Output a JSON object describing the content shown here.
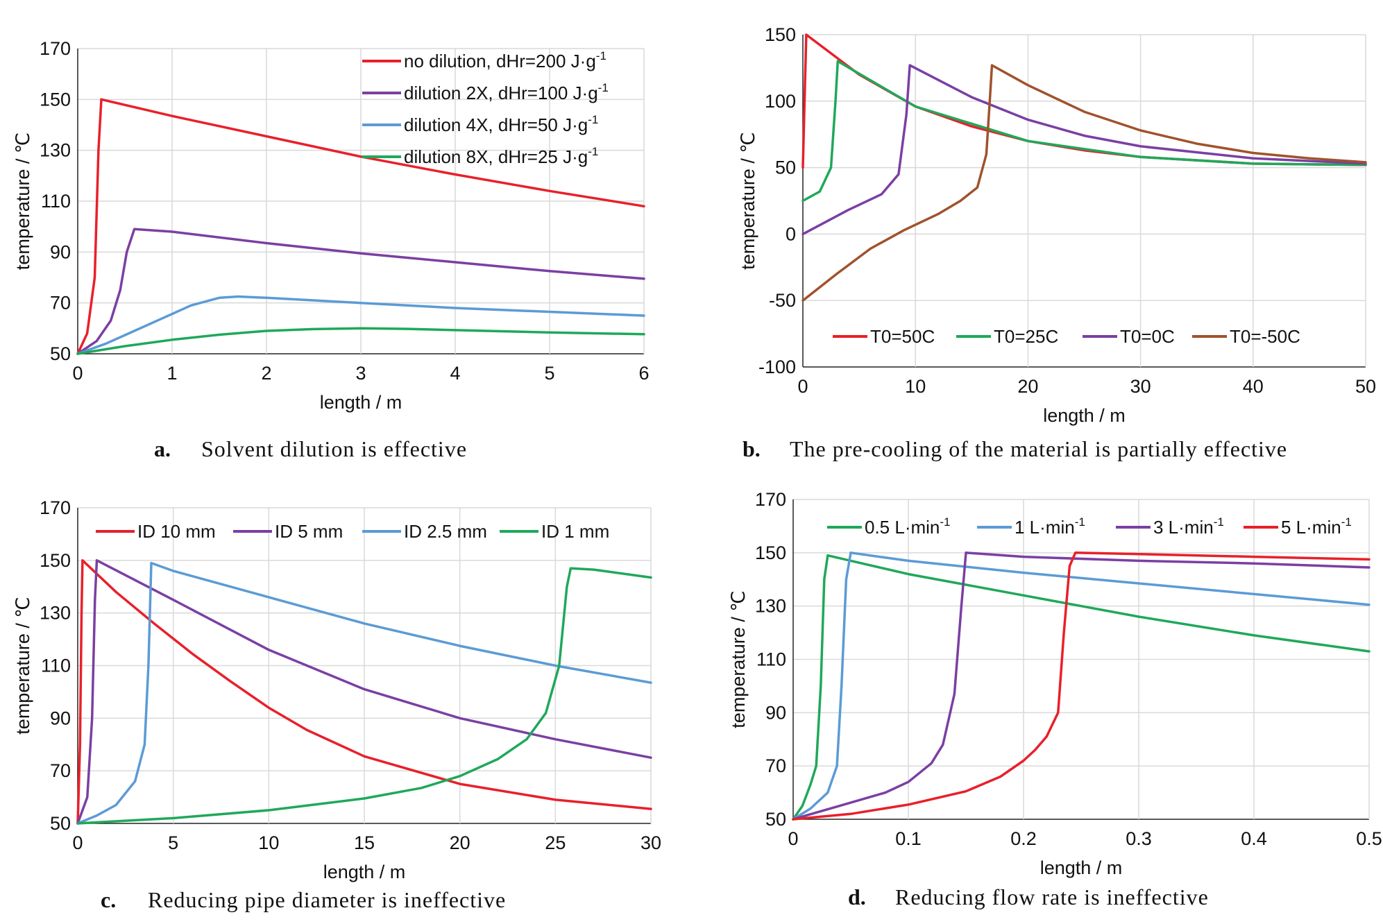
{
  "colors": {
    "red": "#e8202a",
    "purple": "#7b3fa3",
    "blue": "#5b9bd5",
    "green": "#1fa85a",
    "brown": "#a0522d"
  },
  "chart_data": [
    {
      "id": "a",
      "type": "line",
      "caption_letter": "a.",
      "caption": "Solvent dilution is effective",
      "xlabel": "length / m",
      "ylabel": "temperature / ℃",
      "xlim": [
        0,
        6
      ],
      "ylim": [
        50,
        170
      ],
      "xticks": [
        "0",
        "1",
        "2",
        "3",
        "4",
        "5",
        "6"
      ],
      "yticks": [
        "50",
        "70",
        "90",
        "110",
        "130",
        "150",
        "170"
      ],
      "grid": true,
      "legend_position": "top-right",
      "series": [
        {
          "name_main": "no dilution, dHr=200 J·g",
          "name_sup": "-1",
          "color": "red",
          "x": [
            0,
            0.1,
            0.18,
            0.22,
            0.25,
            1,
            2,
            3,
            4,
            5,
            6
          ],
          "y": [
            50,
            58,
            80,
            130,
            150,
            143.5,
            135.5,
            127.5,
            120.5,
            114,
            108
          ]
        },
        {
          "name_main": "dilution 2X, dHr=100 J·g",
          "name_sup": "-1",
          "color": "purple",
          "x": [
            0,
            0.2,
            0.35,
            0.45,
            0.52,
            0.6,
            1,
            2,
            3,
            4,
            5,
            6
          ],
          "y": [
            50,
            55,
            63,
            75,
            90,
            99,
            98,
            93.5,
            89.5,
            86,
            82.5,
            79.5
          ]
        },
        {
          "name_main": "dilution 4X, dHr=50 J·g",
          "name_sup": "-1",
          "color": "blue",
          "x": [
            0,
            0.3,
            0.6,
            0.9,
            1.2,
            1.5,
            1.7,
            2,
            3,
            4,
            5,
            6
          ],
          "y": [
            50,
            54,
            59,
            64,
            69,
            72,
            72.5,
            72,
            70,
            68,
            66.5,
            65
          ]
        },
        {
          "name_main": "dilution 8X, dHr=25 J·g",
          "name_sup": "-1",
          "color": "green",
          "x": [
            0,
            0.5,
            1,
            1.5,
            2,
            2.5,
            3,
            3.5,
            4,
            5,
            6
          ],
          "y": [
            50,
            53,
            55.5,
            57.5,
            59,
            59.7,
            60,
            59.8,
            59.3,
            58.4,
            57.7
          ]
        }
      ]
    },
    {
      "id": "b",
      "type": "line",
      "caption_letter": "b.",
      "caption": "The pre-cooling of the material is partially effective",
      "xlabel": "length / m",
      "ylabel": "temperature / ℃",
      "xlim": [
        0,
        50
      ],
      "ylim": [
        -100,
        150
      ],
      "xticks": [
        "0",
        "10",
        "20",
        "30",
        "40",
        "50"
      ],
      "yticks": [
        "-100",
        "-50",
        "0",
        "50",
        "100",
        "150"
      ],
      "grid": true,
      "legend_position": "bottom",
      "series": [
        {
          "name_main": "T0=50C",
          "name_sup": "",
          "color": "red",
          "x": [
            0,
            0.15,
            0.3,
            5,
            10,
            15,
            20,
            25,
            30,
            40,
            50
          ],
          "y": [
            50,
            100,
            150,
            120,
            96,
            81,
            70,
            63,
            58,
            53,
            52
          ]
        },
        {
          "name_main": "T0=25C",
          "name_sup": "",
          "color": "green",
          "x": [
            0,
            1.5,
            2.5,
            2.9,
            3.1,
            10,
            20,
            30,
            40,
            50
          ],
          "y": [
            25,
            32,
            50,
            100,
            130,
            96,
            70,
            58,
            53,
            52
          ]
        },
        {
          "name_main": "T0=0C",
          "name_sup": "",
          "color": "purple",
          "x": [
            0,
            4,
            7,
            8.5,
            9.2,
            9.5,
            15,
            20,
            25,
            30,
            40,
            50
          ],
          "y": [
            0,
            18,
            30,
            45,
            90,
            127,
            103,
            86,
            74,
            66,
            57,
            53
          ]
        },
        {
          "name_main": "T0=-50C",
          "name_sup": "",
          "color": "brown",
          "x": [
            0,
            3,
            6,
            9,
            12,
            14,
            15.5,
            16.3,
            16.6,
            16.8,
            20,
            25,
            30,
            35,
            40,
            45,
            50
          ],
          "y": [
            -50,
            -30,
            -11,
            3,
            15,
            25,
            35,
            60,
            100,
            127,
            112,
            92,
            78,
            68,
            61,
            57,
            54
          ]
        }
      ]
    },
    {
      "id": "c",
      "type": "line",
      "caption_letter": "c.",
      "caption": "Reducing pipe diameter is ineffective",
      "xlabel": "length / m",
      "ylabel": "temperature / ℃",
      "xlim": [
        0,
        30
      ],
      "ylim": [
        50,
        170
      ],
      "xticks": [
        "0",
        "5",
        "10",
        "15",
        "20",
        "25",
        "30"
      ],
      "yticks": [
        "50",
        "70",
        "90",
        "110",
        "130",
        "150",
        "170"
      ],
      "grid": true,
      "legend_position": "top",
      "series": [
        {
          "name_main": "ID 10 mm",
          "name_sup": "",
          "color": "red",
          "x": [
            0,
            0.12,
            0.2,
            0.25,
            2,
            4,
            6,
            8,
            10,
            12,
            15,
            20,
            25,
            30
          ],
          "y": [
            50,
            80,
            130,
            150,
            138,
            126,
            114.5,
            104,
            94,
            85.5,
            75.5,
            65,
            59,
            55.5
          ]
        },
        {
          "name_main": "ID 5 mm",
          "name_sup": "",
          "color": "purple",
          "x": [
            0,
            0.5,
            0.75,
            0.9,
            1,
            5,
            10,
            15,
            20,
            25,
            30
          ],
          "y": [
            50,
            60,
            90,
            135,
            150,
            135,
            116,
            101,
            90,
            82,
            75
          ]
        },
        {
          "name_main": "ID 2.5 mm",
          "name_sup": "",
          "color": "blue",
          "x": [
            0,
            1,
            2,
            3,
            3.5,
            3.7,
            3.85,
            5,
            10,
            15,
            20,
            25,
            30
          ],
          "y": [
            50,
            53,
            57,
            66,
            80,
            110,
            149,
            146,
            136,
            126,
            117.5,
            110,
            103.5
          ]
        },
        {
          "name_main": "ID 1 mm",
          "name_sup": "",
          "color": "green",
          "x": [
            0,
            5,
            10,
            15,
            18,
            20,
            22,
            23.5,
            24.5,
            25.2,
            25.6,
            25.8,
            27,
            30
          ],
          "y": [
            50,
            52,
            55,
            59.5,
            63.5,
            68,
            74.5,
            82,
            92,
            110,
            140,
            147,
            146.5,
            143.5
          ]
        }
      ]
    },
    {
      "id": "d",
      "type": "line",
      "caption_letter": "d.",
      "caption": "Reducing flow rate is ineffective",
      "xlabel": "length / m",
      "ylabel": "temperature / ℃",
      "xlim": [
        0,
        0.5
      ],
      "ylim": [
        50,
        170
      ],
      "xticks": [
        "0",
        "0.1",
        "0.2",
        "0.3",
        "0.4",
        "0.5"
      ],
      "yticks": [
        "50",
        "70",
        "90",
        "110",
        "130",
        "150",
        "170"
      ],
      "grid": true,
      "legend_position": "top",
      "series": [
        {
          "name_main": "0.5 L·min",
          "name_sup": "-1",
          "color": "green",
          "x": [
            0,
            0.008,
            0.015,
            0.02,
            0.024,
            0.027,
            0.03,
            0.1,
            0.2,
            0.3,
            0.4,
            0.5
          ],
          "y": [
            50,
            55,
            63,
            70,
            100,
            140,
            149,
            142,
            134,
            126,
            119,
            113
          ]
        },
        {
          "name_main": "1 L·min",
          "name_sup": "-1",
          "color": "blue",
          "x": [
            0,
            0.015,
            0.03,
            0.038,
            0.042,
            0.046,
            0.05,
            0.1,
            0.2,
            0.3,
            0.4,
            0.5
          ],
          "y": [
            50,
            54,
            60,
            70,
            100,
            140,
            150,
            147,
            142.5,
            138.5,
            134.5,
            130.5
          ]
        },
        {
          "name_main": "3 L·min",
          "name_sup": "-1",
          "color": "purple",
          "x": [
            0,
            0.04,
            0.08,
            0.1,
            0.12,
            0.13,
            0.14,
            0.146,
            0.15,
            0.2,
            0.3,
            0.4,
            0.5
          ],
          "y": [
            50,
            55,
            60,
            64,
            71,
            78,
            97,
            130,
            150,
            148.5,
            147,
            146,
            144.5
          ]
        },
        {
          "name_main": "5 L·min",
          "name_sup": "-1",
          "color": "red",
          "x": [
            0,
            0.05,
            0.1,
            0.15,
            0.18,
            0.2,
            0.21,
            0.22,
            0.23,
            0.235,
            0.24,
            0.245,
            0.3,
            0.4,
            0.5
          ],
          "y": [
            50,
            52,
            55.5,
            60.5,
            66,
            72,
            76,
            81,
            90,
            120,
            145,
            150,
            149.5,
            148.5,
            147.5
          ]
        }
      ]
    }
  ]
}
